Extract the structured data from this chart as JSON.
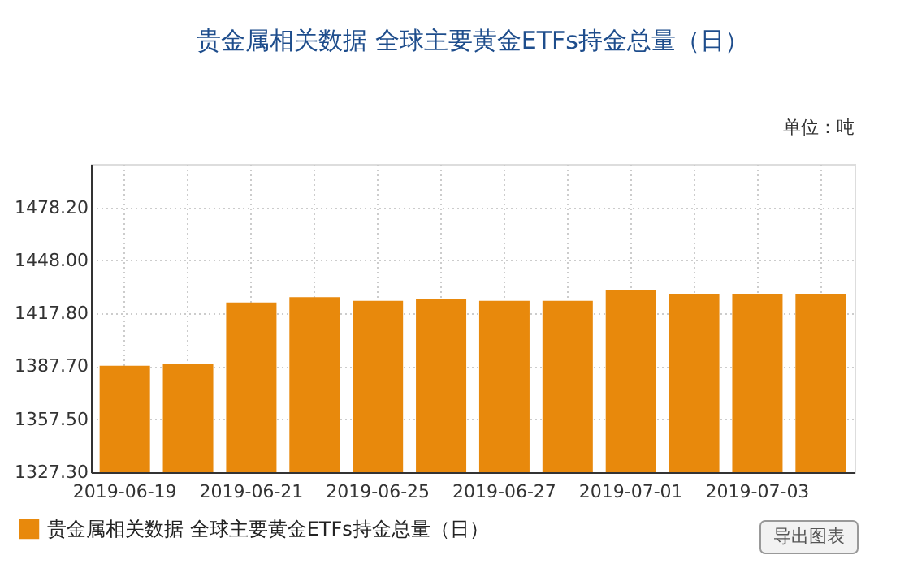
{
  "chart_data": {
    "type": "bar",
    "title": "贵金属相关数据 全球主要黄金ETFs持金总量（日）",
    "categories": [
      "2019-06-19",
      null,
      "2019-06-21",
      null,
      "2019-06-25",
      null,
      "2019-06-27",
      null,
      "2019-07-01",
      null,
      "2019-07-03",
      null
    ],
    "series": [
      {
        "name": "贵金属相关数据 全球主要黄金ETFs持金总量（日）",
        "color": "#e8890c",
        "values": [
          1388,
          1389,
          1424,
          1427,
          1425,
          1426,
          1425,
          1425,
          1431,
          1429,
          1429,
          1429
        ]
      }
    ],
    "ylim": [
      1327.3,
      1503.0
    ],
    "yticks": [
      {
        "value": 1327.3,
        "label": "1327.30"
      },
      {
        "value": 1357.5,
        "label": "1357.50"
      },
      {
        "value": 1387.7,
        "label": "1387.70"
      },
      {
        "value": 1417.8,
        "label": "1417.80"
      },
      {
        "value": 1448.0,
        "label": "1448.00"
      },
      {
        "value": 1478.2,
        "label": "1478.20"
      }
    ],
    "annotations": [
      "单位：吨",
      "导出图表"
    ],
    "grid": true,
    "legend": "bottom left"
  }
}
